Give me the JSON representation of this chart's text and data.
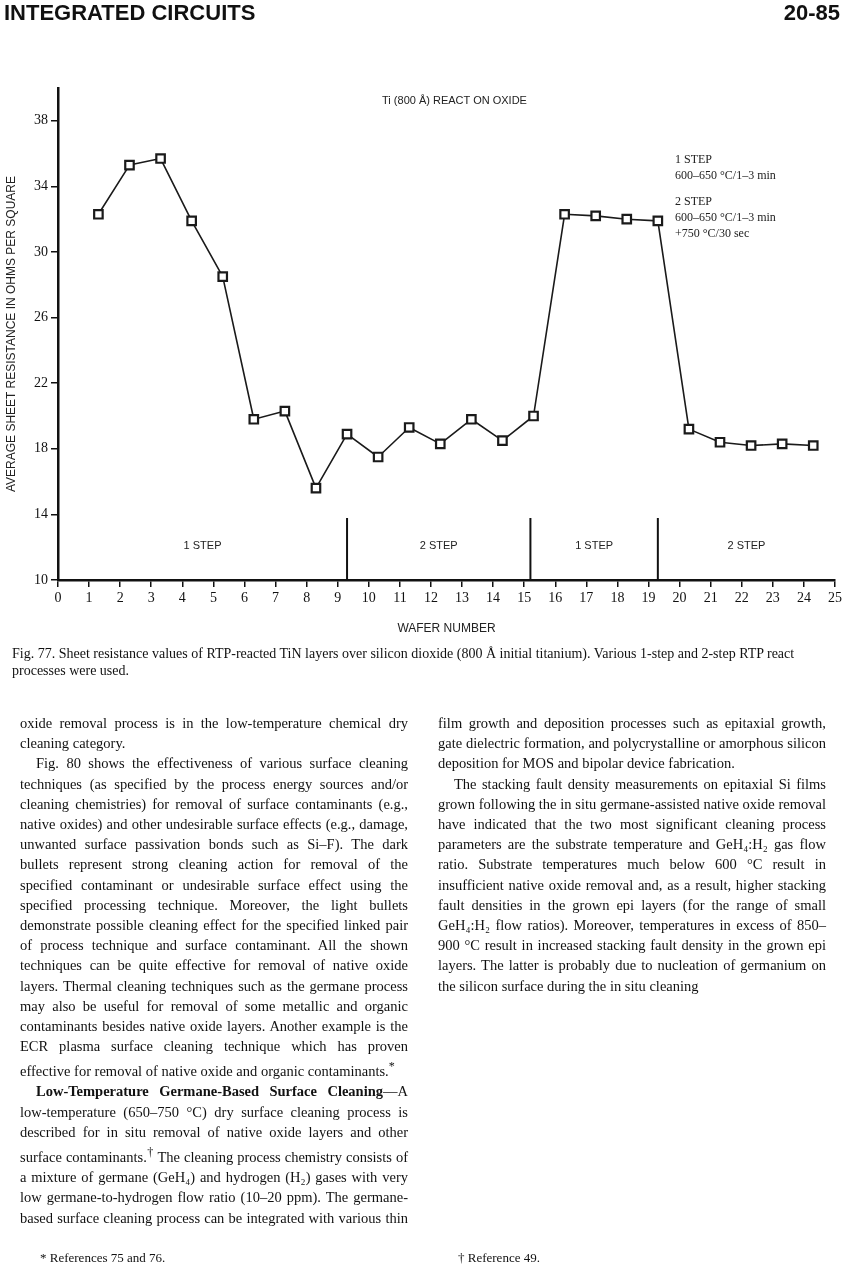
{
  "chart_data": {
    "type": "line",
    "title": "Ti (800 Å) REACT ON OXIDE",
    "xlabel": "WAFER NUMBER",
    "ylabel": "AVERAGE SHEET RESISTANCE IN OHMS PER SQUARE",
    "x": [
      1.3,
      2.3,
      3.3,
      4.3,
      5.3,
      6.3,
      7.3,
      8.3,
      9.3,
      10.3,
      11.3,
      12.3,
      13.3,
      14.3,
      15.3,
      16.3,
      17.3,
      18.3,
      19.3,
      20.3,
      21.3,
      22.3,
      23.3,
      24.3
    ],
    "values": [
      32.3,
      35.3,
      35.7,
      31.9,
      28.5,
      19.8,
      20.3,
      15.6,
      18.9,
      17.5,
      19.3,
      18.3,
      19.8,
      18.5,
      20.0,
      32.3,
      32.2,
      32.0,
      31.9,
      19.2,
      18.4,
      18.2,
      18.3,
      18.2
    ],
    "color": "#1a1a1a",
    "marker": "square",
    "line_style": "solid",
    "grid": false,
    "legend": false,
    "xlim": [
      0,
      25
    ],
    "ylim": [
      10,
      40
    ],
    "xticks": [
      0,
      1,
      2,
      3,
      4,
      5,
      6,
      7,
      8,
      9,
      10,
      11,
      12,
      13,
      14,
      15,
      16,
      17,
      18,
      19,
      20,
      21,
      22,
      23,
      24,
      25
    ],
    "yticks": [
      10,
      14,
      18,
      22,
      26,
      30,
      34,
      38
    ],
    "ref_lines": [
      {
        "axis": "x",
        "value": 9.3
      },
      {
        "axis": "x",
        "value": 15.2
      },
      {
        "axis": "x",
        "value": 19.3
      }
    ],
    "annotations": [
      "INTEGRATED CIRCUITS",
      "20-85",
      "1 STEP",
      "2 STEP",
      "1 STEP",
      "2 STEP",
      "1 STEP\n600–650 °C/1–3 min",
      "2 STEP\n600–650 °C/1–3 min\n+750 °C/30 sec",
      "Fig. 77. Sheet resistance values of RTP-reacted TiN layers over silicon dioxide (800 Å initial titanium). Various 1-step and 2-step RTP react processes were used.",
      "oxide removal process is in the low-temperature chemical dry cleaning category.",
      "Fig. 80 shows the effectiveness of various surface cleaning techniques (as specified by the process energy sources and/or cleaning chemistries) for removal of surface contaminants (e.g., native oxides) and other undesirable surface effects (e.g., damage, unwanted surface passivation bonds such as Si–F). The dark bullets represent strong cleaning action for removal of the specified contaminant or undesirable surface effect using the specified processing technique. Moreover, the light bullets demonstrate possible cleaning effect for the specified linked pair of process technique and surface contaminant. All the shown techniques can be quite effective for removal of native oxide layers. Thermal cleaning techniques such as the germane process may also be useful for removal of some metallic and organic contaminants besides native oxide layers. Another example is the ECR plasma surface cleaning technique which has proven effective for removal of native oxide and organic contaminants.$^{*}$",
      "Low-Temperature Germane-Based Surface Cleaning",
      "—A low-temperature (650–750 °C) dry surface cleaning process is described for in situ removal of native oxide layers and other surface contaminants.$^{†}$ The cleaning process chemistry consists of a mixture of germane (GeH₄) and hydrogen (H₂) gases with very low germane-to-hydrogen flow ratio (10–20 ppm). The germane-based surface cleaning process can be integrated with various thin film growth and deposition processes such as epitaxial growth, gate dielectric formation, and polycrystalline or amorphous silicon deposition for MOS and bipolar device fabrication.",
      "The stacking fault density measurements on epitaxial Si films grown following the in situ germane-assisted native oxide removal have indicated that the two most significant cleaning process parameters are the substrate temperature and GeH₄:H₂ gas flow ratio. Substrate temperatures much below 600 °C result in insufficient native oxide removal and, as a result, higher stacking fault densities in the grown epi layers (for the range of small GeH₄:H₂ flow ratios). Moreover, temperatures in excess of 850–900 °C result in increased stacking fault density in the grown epi layers. The latter is probably due to nucleation of germanium on the silicon surface during the in situ cleaning",
      "* References 75 and 76.",
      "† Reference 49."
    ]
  }
}
